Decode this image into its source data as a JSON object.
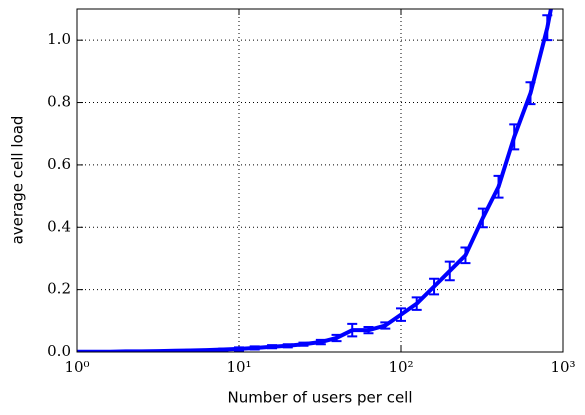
{
  "chart_data": {
    "type": "line",
    "xlabel": "Number of users per cell",
    "ylabel": "average cell load",
    "xscale": "log",
    "xlim": [
      1,
      1000
    ],
    "ylim": [
      0,
      1.1
    ],
    "xticks": [
      {
        "value": 1,
        "label": "10⁰"
      },
      {
        "value": 10,
        "label": "10¹"
      },
      {
        "value": 100,
        "label": "10²"
      },
      {
        "value": 1000,
        "label": "10³"
      }
    ],
    "yticks": [
      {
        "value": 0,
        "label": "0.0"
      },
      0.2,
      0.4,
      0.6,
      0.8,
      {
        "value": 1,
        "label": "1.0"
      }
    ],
    "grid": true,
    "series": [
      {
        "name": "average cell load",
        "color": "#0000ff",
        "x": [
          1,
          1.25,
          1.6,
          2,
          2.5,
          3.2,
          4,
          5,
          6.3,
          8,
          10,
          12.5,
          16,
          20,
          25,
          32,
          40,
          50,
          63,
          80,
          100,
          125,
          160,
          200,
          250,
          320,
          400,
          500,
          630,
          800,
          1000
        ],
        "values": [
          0.001,
          0.001,
          0.001,
          0.002,
          0.002,
          0.003,
          0.004,
          0.005,
          0.006,
          0.008,
          0.01,
          0.013,
          0.017,
          0.02,
          0.025,
          0.032,
          0.045,
          0.07,
          0.07,
          0.085,
          0.12,
          0.155,
          0.21,
          0.26,
          0.31,
          0.43,
          0.53,
          0.69,
          0.83,
          1.04,
          1.3
        ],
        "errors": [
          0.001,
          0.001,
          0.001,
          0.001,
          0.001,
          0.001,
          0.002,
          0.002,
          0.002,
          0.003,
          0.005,
          0.005,
          0.005,
          0.005,
          0.005,
          0.007,
          0.01,
          0.02,
          0.01,
          0.01,
          0.02,
          0.02,
          0.025,
          0.03,
          0.025,
          0.03,
          0.035,
          0.04,
          0.035,
          0.04,
          0.05
        ]
      }
    ]
  }
}
